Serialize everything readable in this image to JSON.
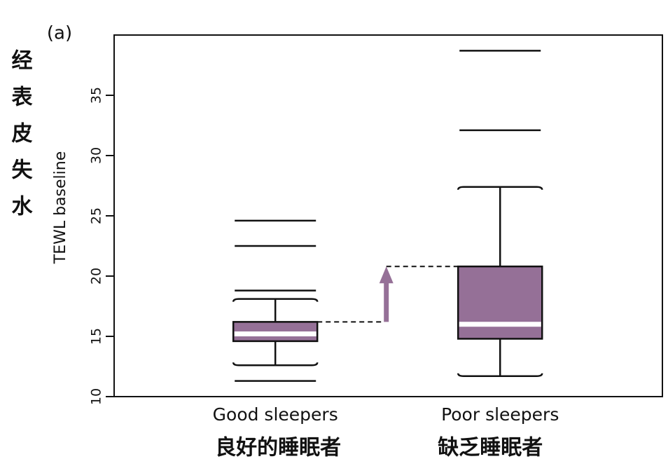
{
  "chart_data": {
    "type": "box",
    "panel_label": "(a)",
    "y_label": "TEWL baseline",
    "y_label_zh": "经表皮失水",
    "categories": [
      "Good sleepers",
      "Poor sleepers"
    ],
    "categories_zh": [
      "良好的睡眠者",
      "缺乏睡眠者"
    ],
    "color": "#957097",
    "median_color": "#ffffff",
    "boxes": [
      {
        "whislo": 12.6,
        "q1": 14.6,
        "med": 15.2,
        "q3": 16.2,
        "whishi": 18.1,
        "fliers": [
          11.3,
          18.8,
          22.5,
          24.6
        ]
      },
      {
        "whislo": 11.7,
        "q1": 14.8,
        "med": 16.0,
        "q3": 20.8,
        "whishi": 27.4,
        "fliers": [
          32.1,
          38.7
        ]
      }
    ],
    "ylim": [
      10,
      40
    ],
    "yticks": [
      10,
      15,
      20,
      25,
      30,
      35
    ]
  }
}
